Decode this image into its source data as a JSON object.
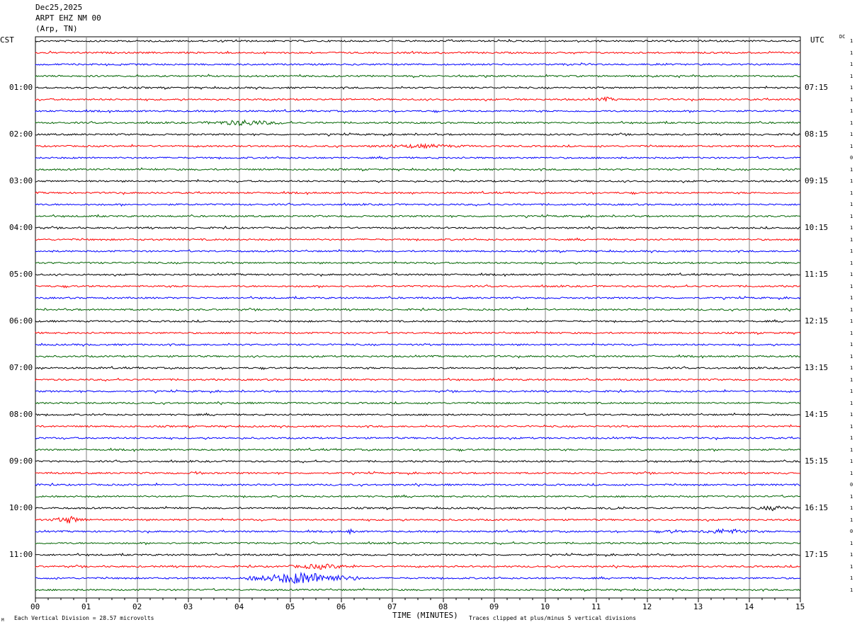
{
  "header": {
    "date": "Dec25,2025",
    "station": "ARPT EHZ NM 00",
    "location": "(Arp, TN)"
  },
  "left_zone": "CST",
  "right_zone": "UTC",
  "dc_label": "DC",
  "footer": {
    "scale": "Each Vertical Division =   28.57 microvolts",
    "clip": "Traces clipped at plus/minus 5 vertical divisions",
    "corner_mark": "M"
  },
  "colors": {
    "black": "#000000",
    "red": "#ff0000",
    "blue": "#0000ff",
    "green": "#006400",
    "grid": "#808080"
  },
  "chart_data": {
    "type": "line",
    "title": "",
    "xlabel": "TIME (MINUTES)",
    "ylabel": "",
    "xlim": [
      0,
      15
    ],
    "x_ticks": [
      "00",
      "01",
      "02",
      "03",
      "04",
      "05",
      "06",
      "07",
      "08",
      "09",
      "10",
      "11",
      "12",
      "13",
      "14",
      "15"
    ],
    "left_hour_labels": [
      "01:00",
      "02:00",
      "03:00",
      "04:00",
      "05:00",
      "06:00",
      "07:00",
      "08:00",
      "09:00",
      "10:00",
      "11:00"
    ],
    "right_hour_labels": [
      "07:15",
      "08:15",
      "09:15",
      "10:15",
      "11:15",
      "12:15",
      "13:15",
      "14:15",
      "15:15",
      "16:15",
      "17:15"
    ],
    "trace_colors": [
      "black",
      "red",
      "blue",
      "green"
    ],
    "trace_count": 48,
    "dc_values": [
      "1",
      "1",
      "1",
      "1",
      "1",
      "1",
      "1",
      "1",
      "1",
      "1",
      "0",
      "1",
      "1",
      "1",
      "1",
      "1",
      "1",
      "1",
      "1",
      "1",
      "1",
      "1",
      "1",
      "1",
      "1",
      "1",
      "1",
      "1",
      "1",
      "1",
      "1",
      "1",
      "1",
      "1",
      "1",
      "1",
      "1",
      "1",
      "0",
      "1",
      "1",
      "1",
      "0",
      "1",
      "1",
      "1",
      "1",
      "1"
    ],
    "events": [
      {
        "trace": 7,
        "start_min": 3.3,
        "end_min": 4.9,
        "amplitude": 3.5
      },
      {
        "trace": 9,
        "start_min": 6.5,
        "end_min": 8.6,
        "amplitude": 2.0
      },
      {
        "trace": 5,
        "start_min": 11.0,
        "end_min": 11.4,
        "amplitude": 2.5
      },
      {
        "trace": 40,
        "start_min": 11.1,
        "end_min": 11.6,
        "amplitude": 2.0
      },
      {
        "trace": 40,
        "start_min": 14.1,
        "end_min": 14.9,
        "amplitude": 3.0
      },
      {
        "trace": 41,
        "start_min": 0.3,
        "end_min": 1.0,
        "amplitude": 4.5
      },
      {
        "trace": 42,
        "start_min": 6.1,
        "end_min": 6.25,
        "amplitude": 3.0
      },
      {
        "trace": 42,
        "start_min": 12.3,
        "end_min": 12.7,
        "amplitude": 2.0
      },
      {
        "trace": 42,
        "start_min": 12.9,
        "end_min": 14.2,
        "amplitude": 3.0
      },
      {
        "trace": 37,
        "start_min": 3.05,
        "end_min": 3.3,
        "amplitude": 3.0
      },
      {
        "trace": 45,
        "start_min": 4.9,
        "end_min": 6.3,
        "amplitude": 3.0
      },
      {
        "trace": 46,
        "start_min": 4.1,
        "end_min": 6.4,
        "amplitude": 8.0
      }
    ]
  }
}
